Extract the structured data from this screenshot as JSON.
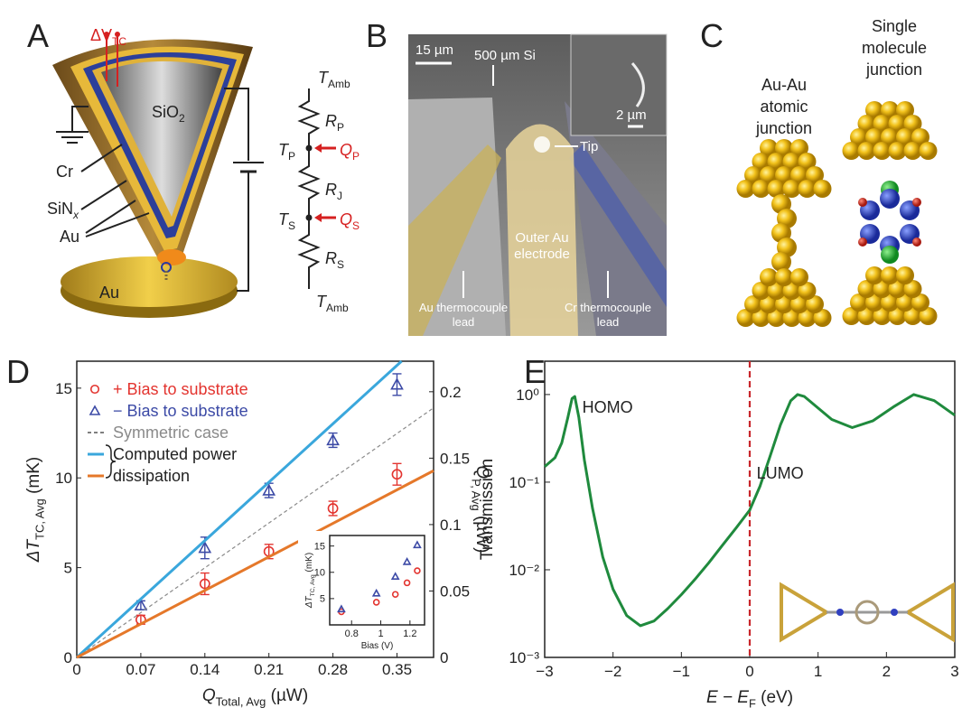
{
  "panels": {
    "A": {
      "label": "A",
      "dv": {
        "base": "ΔV",
        "sub": "TC"
      },
      "sio2": {
        "base": "SiO",
        "sub": "2"
      },
      "cr": "Cr",
      "sinx": {
        "base": "SiN",
        "sub": "x"
      },
      "au_tip": "Au",
      "au_substrate": "Au",
      "circuit": [
        {
          "base": "T",
          "sub": "Amb"
        },
        {
          "base": "R",
          "sub": "P"
        },
        {
          "base": "T",
          "sub": "P"
        },
        {
          "base": "Q",
          "sub": "P"
        },
        {
          "base": "R",
          "sub": "J"
        },
        {
          "base": "T",
          "sub": "S"
        },
        {
          "base": "Q",
          "sub": "S"
        },
        {
          "base": "R",
          "sub": "S"
        },
        {
          "base": "T",
          "sub": "Amb"
        }
      ]
    },
    "B": {
      "label": "B",
      "scale_main": "15 µm",
      "si": "500 µm Si",
      "scale_inset": "2 µm",
      "tip": "Tip",
      "electrode": [
        "Outer Au",
        "electrode"
      ],
      "au_lead": [
        "Au thermocouple",
        "lead"
      ],
      "cr_lead": [
        "Cr thermocouple",
        "lead"
      ]
    },
    "C": {
      "label": "C",
      "au_au": [
        "Au-Au",
        "atomic",
        "junction"
      ],
      "single": [
        "Single",
        "molecule",
        "junction"
      ]
    }
  },
  "chart_data": [
    {
      "type": "scatter",
      "panel_label": "D",
      "x_label": {
        "base": "Q",
        "sub": "Total, Avg",
        "unit": " (µW)"
      },
      "y_label": {
        "base": "ΔT",
        "sub": "TC, Avg",
        "unit": " (mK)"
      },
      "y2_label": {
        "base": "Q",
        "sub": "P, Avg",
        "unit": " (µW)"
      },
      "xlim": [
        0,
        0.39
      ],
      "xticks": [
        0,
        0.07,
        0.14,
        0.21,
        0.28,
        0.35
      ],
      "ylim": [
        0,
        16.5
      ],
      "yticks": [
        0,
        5,
        10,
        15
      ],
      "y2lim": [
        0,
        0.223
      ],
      "y2ticks": [
        0,
        0.05,
        0.1,
        0.15,
        0.2
      ],
      "series": [
        {
          "name": "+ Bias to substrate",
          "color": "#e3342f",
          "marker": "circle",
          "x": [
            0.07,
            0.14,
            0.21,
            0.28,
            0.35
          ],
          "values": [
            2.1,
            4.1,
            5.9,
            8.3,
            10.2
          ],
          "errors": [
            0.25,
            0.6,
            0.4,
            0.4,
            0.6
          ]
        },
        {
          "name": "− Bias to substrate",
          "color": "#3c4aa6",
          "marker": "triangle",
          "x": [
            0.07,
            0.14,
            0.21,
            0.28,
            0.35
          ],
          "values": [
            2.9,
            6.1,
            9.3,
            12.1,
            15.2
          ],
          "errors": [
            0.25,
            0.6,
            0.4,
            0.4,
            0.6
          ]
        },
        {
          "name": "Symmetric case",
          "color": "#8a8a8a",
          "marker": "dashed-line",
          "x": [
            0,
            0.39
          ],
          "values": [
            0,
            13.9
          ]
        },
        {
          "name": "Computed power",
          "color": "#3aa7dc",
          "marker": "line",
          "x": [
            0,
            0.355
          ],
          "values": [
            0,
            16.5
          ]
        },
        {
          "name": "dissipation",
          "color": "#e5782a",
          "marker": "line",
          "x": [
            0,
            0.39
          ],
          "values": [
            0,
            10.4
          ]
        }
      ]
    },
    {
      "type": "scatter",
      "x_label": "Bias (V)",
      "y_label": {
        "base": "ΔT",
        "sub": "TC, Avg",
        "unit": " (mK)"
      },
      "xlim": [
        0.65,
        1.3
      ],
      "xticks": [
        0.8,
        1,
        1.2
      ],
      "ylim": [
        0,
        17
      ],
      "yticks": [
        5,
        10,
        15
      ],
      "series": [
        {
          "color": "#e3342f",
          "marker": "circle",
          "x": [
            0.73,
            0.97,
            1.1,
            1.18,
            1.25
          ],
          "values": [
            2.5,
            4.3,
            5.8,
            8,
            10.3
          ]
        },
        {
          "color": "#3c4aa6",
          "marker": "triangle",
          "x": [
            0.73,
            0.97,
            1.1,
            1.18,
            1.25
          ],
          "values": [
            3,
            6,
            9.2,
            12,
            15.2
          ]
        }
      ]
    },
    {
      "type": "line",
      "panel_label": "E",
      "x_label": {
        "base": "E − E",
        "sub": "F",
        "unit": " (eV)"
      },
      "y_label": "Transmission",
      "xlim": [
        -3,
        3
      ],
      "xticks": [
        {
          "value": -3,
          "label": "−3"
        },
        {
          "value": -2,
          "label": "−2"
        },
        {
          "value": -1,
          "label": "−1"
        },
        0,
        1,
        2,
        3
      ],
      "ylim": [
        0.001,
        2.4
      ],
      "log_y": true,
      "yticks": [
        {
          "value": 0.001,
          "label": "10⁻³"
        },
        {
          "value": 0.01,
          "label": "10⁻²"
        },
        {
          "value": 0.1,
          "label": "10⁻¹"
        },
        {
          "value": 1,
          "label": "10⁰"
        }
      ],
      "x": [
        -3,
        -2.85,
        -2.75,
        -2.66,
        -2.6,
        -2.56,
        -2.5,
        -2.42,
        -2.3,
        -2.15,
        -2,
        -1.8,
        -1.6,
        -1.4,
        -1.2,
        -1,
        -0.8,
        -0.6,
        -0.4,
        -0.2,
        0,
        0.15,
        0.3,
        0.45,
        0.6,
        0.7,
        0.8,
        1,
        1.2,
        1.5,
        1.8,
        2.1,
        2.4,
        2.7,
        3
      ],
      "series": [
        {
          "color": "#1f8a3d",
          "values": [
            0.15,
            0.19,
            0.28,
            0.55,
            0.9,
            0.95,
            0.55,
            0.18,
            0.05,
            0.014,
            0.006,
            0.003,
            0.0023,
            0.0026,
            0.0036,
            0.0052,
            0.0078,
            0.012,
            0.019,
            0.03,
            0.048,
            0.09,
            0.2,
            0.45,
            0.85,
            1.0,
            0.95,
            0.7,
            0.52,
            0.42,
            0.5,
            0.72,
            1.0,
            0.85,
            0.58
          ]
        }
      ],
      "fermi_level": {
        "x": 0,
        "color": "#c8262b"
      },
      "annotations": [
        "HOMO",
        "LUMO"
      ]
    }
  ]
}
